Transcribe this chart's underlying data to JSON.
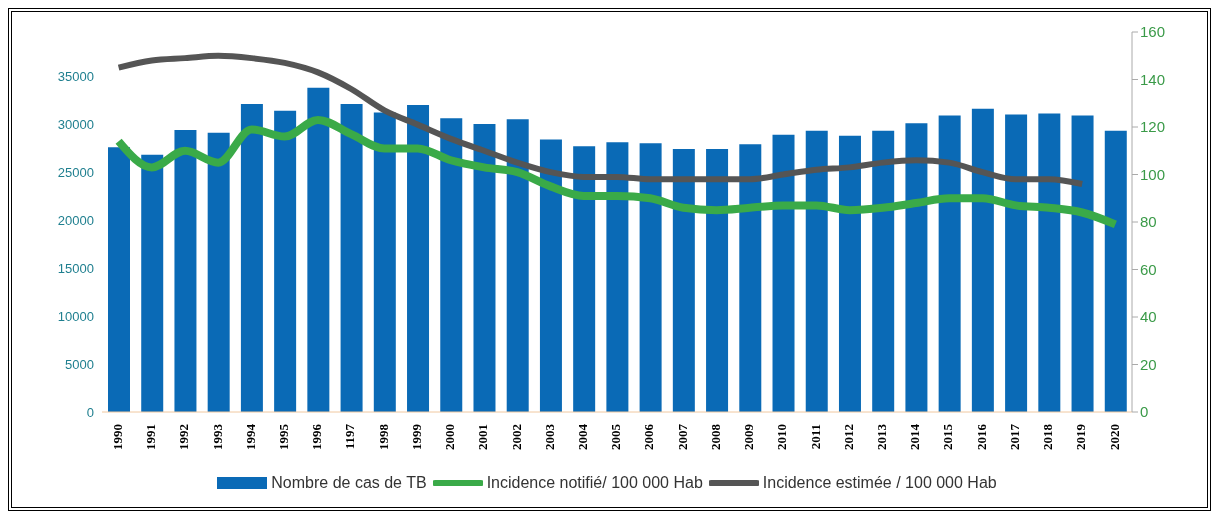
{
  "chart_data": {
    "type": "bar",
    "categories": [
      "1990",
      "1991",
      "1992",
      "1993",
      "1994",
      "1995",
      "1996",
      "1197",
      "1998",
      "1999",
      "2000",
      "2001",
      "2002",
      "2003",
      "2004",
      "2005",
      "2006",
      "2007",
      "2008",
      "2009",
      "2010",
      "2011",
      "2012",
      "2013",
      "2014",
      "2015",
      "2016",
      "2017",
      "2018",
      "2019",
      "2020"
    ],
    "series": [
      {
        "name": "Nombre de cas de TB",
        "color": "#0a6ab6",
        "values": [
          27600,
          26800,
          29400,
          29100,
          32100,
          31400,
          33800,
          32100,
          31200,
          32000,
          30600,
          30000,
          30500,
          28400,
          27700,
          28100,
          28000,
          27400,
          27400,
          27900,
          28900,
          29300,
          28800,
          29300,
          30100,
          30900,
          31600,
          31000,
          31100,
          30900,
          29300
        ]
      },
      {
        "name": "Incidence notifié/ 100 000 Hab",
        "type": "line",
        "axis": "y2",
        "color": "#3aaa48",
        "values": [
          114,
          103,
          110,
          105,
          119,
          116,
          123,
          117,
          111,
          111,
          106,
          103,
          101,
          95,
          91,
          91,
          90,
          86,
          85,
          86,
          87,
          87,
          85,
          86,
          88,
          90,
          90,
          87,
          86,
          84,
          79
        ]
      },
      {
        "name": "Incidence estimée / 100 000 Hab",
        "type": "line",
        "axis": "y2",
        "color": "#555555",
        "values": [
          145,
          148,
          149,
          150,
          149,
          147,
          143,
          136,
          127,
          121,
          115,
          110,
          105,
          101,
          99,
          99,
          98,
          98,
          98,
          98,
          100,
          102,
          103,
          105,
          106,
          105,
          101,
          98,
          98,
          96,
          null
        ]
      }
    ],
    "ylim": [
      0,
      39600
    ],
    "yticks": [
      0,
      5000,
      10000,
      15000,
      20000,
      25000,
      30000,
      35000
    ],
    "y2lim": [
      0,
      160
    ],
    "y2ticks": [
      0,
      20,
      40,
      60,
      80,
      100,
      120,
      140,
      160
    ],
    "grid": false,
    "legend": "bottom",
    "marker": "none",
    "line_style": "solid"
  }
}
